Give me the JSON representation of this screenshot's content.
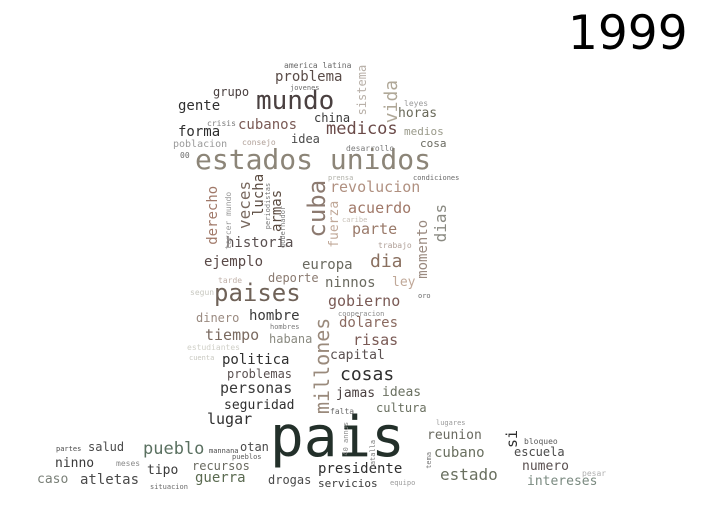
{
  "title": "1999",
  "words": [
    {
      "text": "pais",
      "color": "#23302a"
    },
    {
      "text": "estados unidos",
      "color": "#8c8578"
    },
    {
      "text": "mundo",
      "color": "#4a4040"
    },
    {
      "text": "paises",
      "color": "#6f6258"
    },
    {
      "text": "cuba",
      "color": "#8c7a70"
    },
    {
      "text": "millones",
      "color": "#9a8a7c"
    },
    {
      "text": "problema",
      "color": "#5a4c48"
    },
    {
      "text": "gente",
      "color": "#2f2f2f"
    },
    {
      "text": "grupo",
      "color": "#4a4040"
    },
    {
      "text": "cubanos",
      "color": "#7a5a55"
    },
    {
      "text": "china",
      "color": "#3a3a3a"
    },
    {
      "text": "medicos",
      "color": "#6a4a48"
    },
    {
      "text": "forma",
      "color": "#2f2f2f"
    },
    {
      "text": "idea",
      "color": "#4a4a4a"
    },
    {
      "text": "vida",
      "color": "#b0a898"
    },
    {
      "text": "sistema",
      "color": "#b8b0a8"
    },
    {
      "text": "horas",
      "color": "#6a6a5a"
    },
    {
      "text": "medios",
      "color": "#9a9a8a"
    },
    {
      "text": "cosa",
      "color": "#6a6a60"
    },
    {
      "text": "revolucion",
      "color": "#b09080"
    },
    {
      "text": "acuerdo",
      "color": "#a07868"
    },
    {
      "text": "parte",
      "color": "#9a7a6a"
    },
    {
      "text": "dias",
      "color": "#8a8a82"
    },
    {
      "text": "momento",
      "color": "#9a8a80"
    },
    {
      "text": "fuerza",
      "color": "#c0a898"
    },
    {
      "text": "derecho",
      "color": "#a07868"
    },
    {
      "text": "veces",
      "color": "#7a6a60"
    },
    {
      "text": "lucha",
      "color": "#5a4a40"
    },
    {
      "text": "armas",
      "color": "#5a4a40"
    },
    {
      "text": "historia",
      "color": "#5a5050"
    },
    {
      "text": "ejemplo",
      "color": "#5a4a48"
    },
    {
      "text": "europa",
      "color": "#6a6a60"
    },
    {
      "text": "dia",
      "color": "#8a7060"
    },
    {
      "text": "deporte",
      "color": "#8a7a70"
    },
    {
      "text": "ninnos",
      "color": "#6a6a60"
    },
    {
      "text": "ley",
      "color": "#c0a898"
    },
    {
      "text": "gobierno",
      "color": "#7a5a55"
    },
    {
      "text": "dinero",
      "color": "#9a8a80"
    },
    {
      "text": "hombre",
      "color": "#3a3a3a"
    },
    {
      "text": "tiempo",
      "color": "#7a6a60"
    },
    {
      "text": "habana",
      "color": "#8a8a80"
    },
    {
      "text": "dolares",
      "color": "#8a6a60"
    },
    {
      "text": "risas",
      "color": "#7a5a55"
    },
    {
      "text": "politica",
      "color": "#2f2f2f"
    },
    {
      "text": "capital",
      "color": "#5a5050"
    },
    {
      "text": "problemas",
      "color": "#5a5050"
    },
    {
      "text": "cosas",
      "color": "#2f2f2f"
    },
    {
      "text": "personas",
      "color": "#3a3a3a"
    },
    {
      "text": "ideas",
      "color": "#6a7060"
    },
    {
      "text": "jamas",
      "color": "#4a4040"
    },
    {
      "text": "seguridad",
      "color": "#2f2f2f"
    },
    {
      "text": "cultura",
      "color": "#6a7060"
    },
    {
      "text": "lugar",
      "color": "#2f2f2f"
    },
    {
      "text": "reunion",
      "color": "#6a6a60"
    },
    {
      "text": "si",
      "color": "#2f2f2f"
    },
    {
      "text": "cubano",
      "color": "#6a7060"
    },
    {
      "text": "escuela",
      "color": "#4a4a4a"
    },
    {
      "text": "pueblo",
      "color": "#5a7060"
    },
    {
      "text": "salud",
      "color": "#4a4a4a"
    },
    {
      "text": "otan",
      "color": "#4a4a4a"
    },
    {
      "text": "ninno",
      "color": "#3a3a3a"
    },
    {
      "text": "tipo",
      "color": "#3a3a3a"
    },
    {
      "text": "recursos",
      "color": "#6a6a60"
    },
    {
      "text": "presidente",
      "color": "#2f2f2f"
    },
    {
      "text": "estado",
      "color": "#6a7060"
    },
    {
      "text": "numero",
      "color": "#5a5050"
    },
    {
      "text": "caso",
      "color": "#7a8078"
    },
    {
      "text": "atletas",
      "color": "#4a4a4a"
    },
    {
      "text": "guerra",
      "color": "#5a6a50"
    },
    {
      "text": "drogas",
      "color": "#4a4a4a"
    },
    {
      "text": "servicios",
      "color": "#3a3a3a"
    },
    {
      "text": "intereses",
      "color": "#7a8a80"
    },
    {
      "text": "america latina",
      "color": "#6a6a6a"
    },
    {
      "text": "jovenes",
      "color": "#6a6a6a"
    },
    {
      "text": "leyes",
      "color": "#9a9a9a"
    },
    {
      "text": "crisis",
      "color": "#7a7a7a"
    },
    {
      "text": "poblacion",
      "color": "#9a9a9a"
    },
    {
      "text": "consejo",
      "color": "#b0a098"
    },
    {
      "text": "desarrollo",
      "color": "#7a7a7a"
    },
    {
      "text": "00",
      "color": "#6a6a6a"
    },
    {
      "text": "prensa",
      "color": "#b0b0a8"
    },
    {
      "text": "condiciones",
      "color": "#6a6a6a"
    },
    {
      "text": "tercer mundo",
      "color": "#9a9a9a"
    },
    {
      "text": "periodistas",
      "color": "#7a7a7a"
    },
    {
      "text": "gobernador",
      "color": "#7a7a7a"
    },
    {
      "text": "caribe",
      "color": "#c8c0b8"
    },
    {
      "text": "trabajo",
      "color": "#b0a098"
    },
    {
      "text": "tarde",
      "color": "#c0b0a8"
    },
    {
      "text": "segun",
      "color": "#c8c8c0"
    },
    {
      "text": "oro",
      "color": "#6a6a6a"
    },
    {
      "text": "cooperacion",
      "color": "#8a8a8a"
    },
    {
      "text": "hombres",
      "color": "#7a7a7a"
    },
    {
      "text": "estudiantes",
      "color": "#d0d0c8"
    },
    {
      "text": "cuenta",
      "color": "#c8c8c0"
    },
    {
      "text": "falta",
      "color": "#6a6a6a"
    },
    {
      "text": "40 annos",
      "color": "#8a8a8a"
    },
    {
      "text": "lugares",
      "color": "#9a9a9a"
    },
    {
      "text": "bloqueo",
      "color": "#5a5a5a"
    },
    {
      "text": "partes",
      "color": "#4a4a4a"
    },
    {
      "text": "mannana",
      "color": "#4a4a4a"
    },
    {
      "text": "pueblos",
      "color": "#5a5a5a"
    },
    {
      "text": "meses",
      "color": "#8a8a8a"
    },
    {
      "text": "situacion",
      "color": "#6a6a6a"
    },
    {
      "text": "batalla",
      "color": "#7a7a7a"
    },
    {
      "text": "tema",
      "color": "#7a7a7a"
    },
    {
      "text": "equipo",
      "color": "#9a9a9a"
    },
    {
      "text": "pesar",
      "color": "#b0b0b0"
    }
  ]
}
